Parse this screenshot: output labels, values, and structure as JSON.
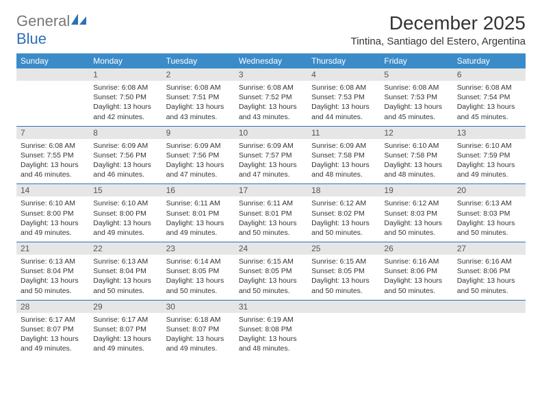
{
  "brand": {
    "text1": "General",
    "text2": "Blue"
  },
  "title": "December 2025",
  "location": "Tintina, Santiago del Estero, Argentina",
  "colors": {
    "header_bg": "#3b8bc9",
    "header_text": "#ffffff",
    "daynum_bg": "#e6e6e6",
    "rule": "#2d6fb5",
    "body_text": "#333333",
    "page_bg": "#ffffff"
  },
  "dayHeaders": [
    "Sunday",
    "Monday",
    "Tuesday",
    "Wednesday",
    "Thursday",
    "Friday",
    "Saturday"
  ],
  "weeks": [
    [
      {
        "n": "",
        "sunrise": "",
        "sunset": "",
        "daylight": ""
      },
      {
        "n": "1",
        "sunrise": "Sunrise: 6:08 AM",
        "sunset": "Sunset: 7:50 PM",
        "daylight": "Daylight: 13 hours and 42 minutes."
      },
      {
        "n": "2",
        "sunrise": "Sunrise: 6:08 AM",
        "sunset": "Sunset: 7:51 PM",
        "daylight": "Daylight: 13 hours and 43 minutes."
      },
      {
        "n": "3",
        "sunrise": "Sunrise: 6:08 AM",
        "sunset": "Sunset: 7:52 PM",
        "daylight": "Daylight: 13 hours and 43 minutes."
      },
      {
        "n": "4",
        "sunrise": "Sunrise: 6:08 AM",
        "sunset": "Sunset: 7:53 PM",
        "daylight": "Daylight: 13 hours and 44 minutes."
      },
      {
        "n": "5",
        "sunrise": "Sunrise: 6:08 AM",
        "sunset": "Sunset: 7:53 PM",
        "daylight": "Daylight: 13 hours and 45 minutes."
      },
      {
        "n": "6",
        "sunrise": "Sunrise: 6:08 AM",
        "sunset": "Sunset: 7:54 PM",
        "daylight": "Daylight: 13 hours and 45 minutes."
      }
    ],
    [
      {
        "n": "7",
        "sunrise": "Sunrise: 6:08 AM",
        "sunset": "Sunset: 7:55 PM",
        "daylight": "Daylight: 13 hours and 46 minutes."
      },
      {
        "n": "8",
        "sunrise": "Sunrise: 6:09 AM",
        "sunset": "Sunset: 7:56 PM",
        "daylight": "Daylight: 13 hours and 46 minutes."
      },
      {
        "n": "9",
        "sunrise": "Sunrise: 6:09 AM",
        "sunset": "Sunset: 7:56 PM",
        "daylight": "Daylight: 13 hours and 47 minutes."
      },
      {
        "n": "10",
        "sunrise": "Sunrise: 6:09 AM",
        "sunset": "Sunset: 7:57 PM",
        "daylight": "Daylight: 13 hours and 47 minutes."
      },
      {
        "n": "11",
        "sunrise": "Sunrise: 6:09 AM",
        "sunset": "Sunset: 7:58 PM",
        "daylight": "Daylight: 13 hours and 48 minutes."
      },
      {
        "n": "12",
        "sunrise": "Sunrise: 6:10 AM",
        "sunset": "Sunset: 7:58 PM",
        "daylight": "Daylight: 13 hours and 48 minutes."
      },
      {
        "n": "13",
        "sunrise": "Sunrise: 6:10 AM",
        "sunset": "Sunset: 7:59 PM",
        "daylight": "Daylight: 13 hours and 49 minutes."
      }
    ],
    [
      {
        "n": "14",
        "sunrise": "Sunrise: 6:10 AM",
        "sunset": "Sunset: 8:00 PM",
        "daylight": "Daylight: 13 hours and 49 minutes."
      },
      {
        "n": "15",
        "sunrise": "Sunrise: 6:10 AM",
        "sunset": "Sunset: 8:00 PM",
        "daylight": "Daylight: 13 hours and 49 minutes."
      },
      {
        "n": "16",
        "sunrise": "Sunrise: 6:11 AM",
        "sunset": "Sunset: 8:01 PM",
        "daylight": "Daylight: 13 hours and 49 minutes."
      },
      {
        "n": "17",
        "sunrise": "Sunrise: 6:11 AM",
        "sunset": "Sunset: 8:01 PM",
        "daylight": "Daylight: 13 hours and 50 minutes."
      },
      {
        "n": "18",
        "sunrise": "Sunrise: 6:12 AM",
        "sunset": "Sunset: 8:02 PM",
        "daylight": "Daylight: 13 hours and 50 minutes."
      },
      {
        "n": "19",
        "sunrise": "Sunrise: 6:12 AM",
        "sunset": "Sunset: 8:03 PM",
        "daylight": "Daylight: 13 hours and 50 minutes."
      },
      {
        "n": "20",
        "sunrise": "Sunrise: 6:13 AM",
        "sunset": "Sunset: 8:03 PM",
        "daylight": "Daylight: 13 hours and 50 minutes."
      }
    ],
    [
      {
        "n": "21",
        "sunrise": "Sunrise: 6:13 AM",
        "sunset": "Sunset: 8:04 PM",
        "daylight": "Daylight: 13 hours and 50 minutes."
      },
      {
        "n": "22",
        "sunrise": "Sunrise: 6:13 AM",
        "sunset": "Sunset: 8:04 PM",
        "daylight": "Daylight: 13 hours and 50 minutes."
      },
      {
        "n": "23",
        "sunrise": "Sunrise: 6:14 AM",
        "sunset": "Sunset: 8:05 PM",
        "daylight": "Daylight: 13 hours and 50 minutes."
      },
      {
        "n": "24",
        "sunrise": "Sunrise: 6:15 AM",
        "sunset": "Sunset: 8:05 PM",
        "daylight": "Daylight: 13 hours and 50 minutes."
      },
      {
        "n": "25",
        "sunrise": "Sunrise: 6:15 AM",
        "sunset": "Sunset: 8:05 PM",
        "daylight": "Daylight: 13 hours and 50 minutes."
      },
      {
        "n": "26",
        "sunrise": "Sunrise: 6:16 AM",
        "sunset": "Sunset: 8:06 PM",
        "daylight": "Daylight: 13 hours and 50 minutes."
      },
      {
        "n": "27",
        "sunrise": "Sunrise: 6:16 AM",
        "sunset": "Sunset: 8:06 PM",
        "daylight": "Daylight: 13 hours and 50 minutes."
      }
    ],
    [
      {
        "n": "28",
        "sunrise": "Sunrise: 6:17 AM",
        "sunset": "Sunset: 8:07 PM",
        "daylight": "Daylight: 13 hours and 49 minutes."
      },
      {
        "n": "29",
        "sunrise": "Sunrise: 6:17 AM",
        "sunset": "Sunset: 8:07 PM",
        "daylight": "Daylight: 13 hours and 49 minutes."
      },
      {
        "n": "30",
        "sunrise": "Sunrise: 6:18 AM",
        "sunset": "Sunset: 8:07 PM",
        "daylight": "Daylight: 13 hours and 49 minutes."
      },
      {
        "n": "31",
        "sunrise": "Sunrise: 6:19 AM",
        "sunset": "Sunset: 8:08 PM",
        "daylight": "Daylight: 13 hours and 48 minutes."
      },
      {
        "n": "",
        "sunrise": "",
        "sunset": "",
        "daylight": ""
      },
      {
        "n": "",
        "sunrise": "",
        "sunset": "",
        "daylight": ""
      },
      {
        "n": "",
        "sunrise": "",
        "sunset": "",
        "daylight": ""
      }
    ]
  ]
}
